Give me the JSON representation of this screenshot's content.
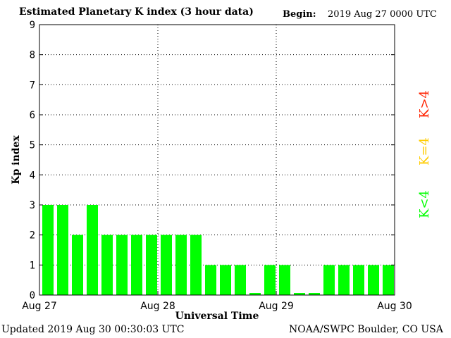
{
  "header": {
    "title": "Estimated Planetary K index (3 hour data)",
    "begin_label": "Begin:",
    "begin_value": "2019 Aug 27 0000 UTC"
  },
  "footer": {
    "updated": "Updated 2019 Aug 30 00:30:03 UTC",
    "credit": "NOAA/SWPC Boulder, CO USA"
  },
  "colors": {
    "low": "#00ff00",
    "storm_threshold": "#ffcc00",
    "storm": "#ff2200"
  },
  "legend": [
    {
      "label": "K<4",
      "color": "#00ff00"
    },
    {
      "label": "K=4",
      "color": "#ffcc00"
    },
    {
      "label": "K>4",
      "color": "#ff2200"
    }
  ],
  "chart_data": {
    "type": "bar",
    "xlabel": "Universal Time",
    "ylabel": "Kp index",
    "ylim": [
      0,
      9
    ],
    "yticks": [
      0,
      1,
      2,
      3,
      4,
      5,
      6,
      7,
      8,
      9
    ],
    "x_tick_labels": [
      "Aug 27",
      "Aug 28",
      "Aug 29",
      "Aug 30"
    ],
    "grid": true,
    "legend_placement": "right",
    "values": [
      3,
      3,
      2,
      3,
      2,
      2,
      2,
      2,
      2,
      2,
      2,
      1,
      1,
      1,
      0.07,
      1,
      1,
      0.07,
      0.07,
      1,
      1,
      1,
      1,
      1
    ]
  }
}
